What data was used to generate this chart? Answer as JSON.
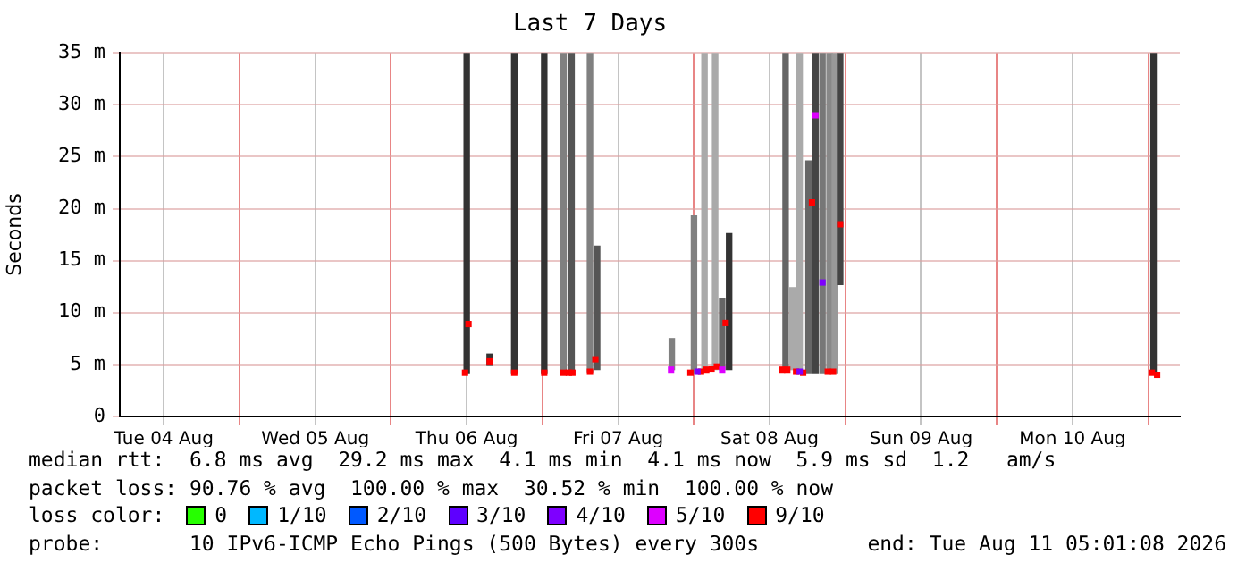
{
  "chart_data": {
    "type": "bar",
    "title": "Last 7 Days",
    "ylabel": "Seconds",
    "legend_title": "loss color:",
    "legend": "bottom",
    "grid": true,
    "marker": "square",
    "xlim": [
      "2026-08-04T05:01",
      "2026-08-11T05:01"
    ],
    "xticks": [
      {
        "value": "2026-08-04T12:00",
        "label": "Tue 04 Aug"
      },
      {
        "value": "2026-08-05T00:00",
        "label": null
      },
      {
        "value": "2026-08-05T12:00",
        "label": "Wed 05 Aug"
      },
      {
        "value": "2026-08-06T00:00",
        "label": null
      },
      {
        "value": "2026-08-06T12:00",
        "label": "Thu 06 Aug"
      },
      {
        "value": "2026-08-07T00:00",
        "label": null
      },
      {
        "value": "2026-08-07T12:00",
        "label": "Fri 07 Aug"
      },
      {
        "value": "2026-08-08T00:00",
        "label": null
      },
      {
        "value": "2026-08-08T12:00",
        "label": "Sat 08 Aug"
      },
      {
        "value": "2026-08-09T00:00",
        "label": null
      },
      {
        "value": "2026-08-09T12:00",
        "label": "Sun 09 Aug"
      },
      {
        "value": "2026-08-10T00:00",
        "label": null
      },
      {
        "value": "2026-08-10T12:00",
        "label": "Mon 10 Aug"
      },
      {
        "value": "2026-08-11T00:00",
        "label": null
      }
    ],
    "ylim": [
      0,
      35
    ],
    "yticks": [
      0,
      {
        "value": 5,
        "label": "5 m"
      },
      {
        "value": 10,
        "label": "10 m"
      },
      {
        "value": 15,
        "label": "15 m"
      },
      {
        "value": 20,
        "label": "20 m"
      },
      {
        "value": 25,
        "label": "25 m"
      },
      {
        "value": 30,
        "label": "30 m"
      },
      {
        "value": 35,
        "label": "35 m"
      }
    ],
    "series": [
      {
        "x": [
          "2026-08-06T12:00",
          "2026-08-06T15:38",
          "2026-08-06T19:32",
          "2026-08-07T00:17",
          "2026-08-07T03:21",
          "2026-08-07T04:37",
          "2026-08-07T07:32",
          "2026-08-07T08:40",
          "2026-08-07T20:30",
          "2026-08-08T00:01",
          "2026-08-08T01:41",
          "2026-08-08T03:22",
          "2026-08-08T04:29",
          "2026-08-08T05:35",
          "2026-08-08T14:32",
          "2026-08-08T15:38",
          "2026-08-08T16:46",
          "2026-08-08T18:10",
          "2026-08-08T19:16",
          "2026-08-08T20:23",
          "2026-08-08T21:30",
          "2026-08-08T22:20",
          "2026-08-08T23:11",
          "2026-08-11T00:51"
        ],
        "base": [
          4.2,
          5.0,
          4.2,
          4.2,
          4.2,
          4.2,
          4.3,
          4.5,
          4.5,
          4.2,
          4.5,
          4.5,
          4.5,
          4.5,
          4.5,
          4.5,
          4.5,
          4.2,
          4.2,
          4.2,
          4.2,
          4.2,
          12.7,
          4.2
        ],
        "values": [
          30.8,
          1.0,
          30.8,
          30.8,
          30.8,
          30.8,
          30.7,
          11.9,
          3.0,
          15.1,
          30.5,
          30.5,
          6.8,
          13.1,
          30.5,
          7.9,
          30.5,
          20.4,
          30.8,
          30.8,
          30.8,
          30.8,
          22.3,
          30.8
        ],
        "colors": [
          "#333333",
          "#333333",
          "#333333",
          "#333333",
          "#808080",
          "#555555",
          "#808080",
          "#555555",
          "#808080",
          "#808080",
          "#aaaaaa",
          "#aaaaaa",
          "#666666",
          "#333333",
          "#666666",
          "#aaaaaa",
          "#aaaaaa",
          "#666666",
          "#444444",
          "#777777",
          "#888888",
          "#999999",
          "#444444",
          "#333333"
        ]
      },
      {
        "type": "scatter",
        "name": "0",
        "color": "#26ff00"
      },
      {
        "type": "scatter",
        "name": "1/10",
        "color": "#00b8ff"
      },
      {
        "type": "scatter",
        "name": "2/10",
        "color": "#0059ff"
      },
      {
        "type": "scatter",
        "name": "3/10",
        "color": "#5e00ff"
      },
      {
        "type": "scatter",
        "name": "4/10",
        "color": "#7e00ff",
        "x": [
          "2026-08-08T00:34",
          "2026-08-08T16:46",
          "2026-08-08T20:23"
        ],
        "values": [
          4.3,
          4.3,
          12.9
        ]
      },
      {
        "type": "scatter",
        "name": "5/10",
        "color": "#dd00ff",
        "x": [
          "2026-08-07T20:23",
          "2026-08-08T04:29",
          "2026-08-08T19:16"
        ],
        "values": [
          4.5,
          4.5,
          29.0
        ]
      },
      {
        "type": "scatter",
        "name": "9/10",
        "color": "#ff0000",
        "x": [
          "2026-08-06T11:44",
          "2026-08-06T12:17",
          "2026-08-06T15:38",
          "2026-08-06T19:32",
          "2026-08-07T00:17",
          "2026-08-07T03:21",
          "2026-08-07T04:11",
          "2026-08-07T04:45",
          "2026-08-07T07:32",
          "2026-08-07T08:23",
          "2026-08-07T23:27",
          "2026-08-08T01:08",
          "2026-08-08T01:58",
          "2026-08-08T02:48",
          "2026-08-08T03:38",
          "2026-08-08T05:02",
          "2026-08-08T13:58",
          "2026-08-08T14:48",
          "2026-08-08T16:12",
          "2026-08-08T17:19",
          "2026-08-08T18:43",
          "2026-08-08T21:13",
          "2026-08-08T22:04",
          "2026-08-08T23:11",
          "2026-08-11T00:35",
          "2026-08-11T01:25"
        ],
        "values": [
          4.2,
          8.9,
          5.3,
          4.2,
          4.2,
          4.2,
          4.2,
          4.2,
          4.3,
          5.5,
          4.2,
          4.3,
          4.5,
          4.6,
          4.8,
          9.0,
          4.5,
          4.5,
          4.3,
          4.2,
          20.6,
          4.3,
          4.3,
          18.5,
          4.2,
          4.0
        ]
      }
    ],
    "annotations": [
      "median rtt:  6.8 ms avg  29.2 ms max  4.1 ms min  4.1 ms now  5.9 ms sd  1.2   am/s",
      "packet loss: 90.76 % avg  100.00 % max  30.52 % min  100.00 % now",
      "probe:       10 IPv6-ICMP Echo Pings (500 Bytes) every 300s",
      "end: Tue Aug 11 05:01:08 2026"
    ]
  }
}
